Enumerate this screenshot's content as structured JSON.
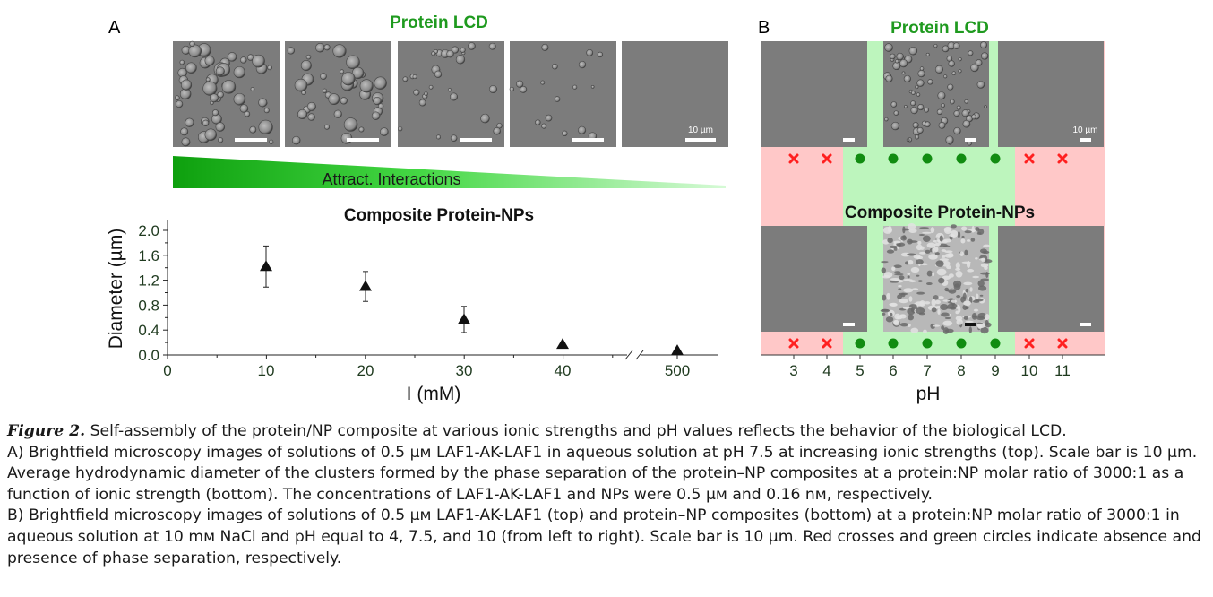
{
  "panel_a": {
    "letter": "A",
    "top_title": "Protein LCD",
    "scale_bar_label": "10 µm",
    "gradient_label": "Attract. Interactions",
    "plot_title": "Composite Protein-NPs"
  },
  "panel_b": {
    "letter": "B",
    "top_title": "Protein LCD",
    "middle_title": "Composite Protein-NPs",
    "scale_bar_label": "10 µm",
    "ph_values": [
      "3",
      "4",
      "5",
      "6",
      "7",
      "8",
      "9",
      "10",
      "11"
    ],
    "phase_separation_top": [
      false,
      false,
      true,
      true,
      true,
      true,
      true,
      false,
      false
    ],
    "phase_separation_bottom": [
      false,
      false,
      true,
      true,
      true,
      true,
      true,
      false,
      false
    ],
    "xlabel": "pH"
  },
  "colors": {
    "title_green": "#1f9a1f",
    "absent_red": "#ff2020",
    "present_green": "#118c11",
    "red_band": "#ffc8c8",
    "green_band": "#bdf5bd"
  },
  "chart_data": {
    "type": "scatter",
    "title": "Composite Protein-NPs",
    "xlabel": "I (mM)",
    "ylabel": "Diameter (µm)",
    "x_ticks": [
      "0",
      "10",
      "20",
      "30",
      "40",
      "500"
    ],
    "y_ticks": [
      "0.0",
      "0.4",
      "0.8",
      "1.2",
      "1.6",
      "2.0"
    ],
    "ylim": [
      0,
      2.0
    ],
    "axis_break": true,
    "points": [
      {
        "x": "10",
        "y": 1.42,
        "err": 0.33
      },
      {
        "x": "20",
        "y": 1.1,
        "err": 0.24
      },
      {
        "x": "30",
        "y": 0.57,
        "err": 0.21
      },
      {
        "x": "40",
        "y": 0.17,
        "err": 0.0
      },
      {
        "x": "500",
        "y": 0.07,
        "err": 0.0
      }
    ]
  },
  "caption": {
    "label": "Figure 2.",
    "line1": " Self-assembly of the protein/NP composite at various ionic strengths and pH values reflects the behavior of the biological LCD.",
    "part_a": "A) Brightfield microscopy images of solutions of 0.5 µм LAF1-AK-LAF1 in aqueous solution at pH 7.5 at increasing ionic strengths (top). Scale bar is 10 µm. Average hydrodynamic diameter of the clusters formed by the phase separation of the protein–NP composites at a protein:NP molar ratio of 3000:1 as a function of ionic strength (bottom). The concentrations of LAF1-AK-LAF1 and NPs were 0.5 µм and 0.16 nм, respectively.",
    "part_b": "B) Brightfield microscopy images of solutions of 0.5 µм LAF1-AK-LAF1 (top) and protein–NP composites (bottom) at a protein:NP molar ratio of 3000:1 in aqueous solution at 10 mм NaCl and pH equal to 4, 7.5, and 10 (from left to right). Scale bar is 10 µm. Red crosses and green circles indicate absence and presence of phase separation, respectively."
  }
}
